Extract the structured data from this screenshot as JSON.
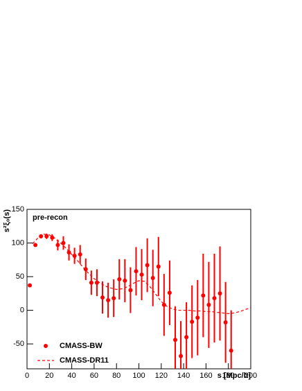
{
  "chart_data": {
    "type": "scatter",
    "annotation": "pre-recon",
    "x_label": "s [Mpc/h]",
    "y_label": "s²ξ₀(s)",
    "xlim": [
      0,
      200
    ],
    "xticks": [
      0,
      20,
      40,
      60,
      80,
      100,
      120,
      140,
      160,
      180,
      200
    ],
    "ylim": [
      -87,
      150
    ],
    "yticks": [
      -50,
      0,
      50,
      100,
      150
    ],
    "legend": "bottom-left",
    "series": [
      {
        "name": "CMASS-BW",
        "color": "#ff0000",
        "style": "points",
        "x": [
          2.5,
          7.5,
          12.5,
          17.5,
          22.5,
          27.5,
          32.5,
          37.5,
          42.5,
          47.5,
          52.5,
          57.5,
          62.5,
          67.5,
          72.5,
          77.5,
          82.5,
          87.5,
          92.5,
          97.5,
          102.5,
          107.5,
          112.5,
          117.5,
          122.5,
          127.5,
          132.5,
          137.5,
          142.5,
          147.5,
          152.5,
          157.5,
          162.5,
          167.5,
          172.5,
          177.5,
          182.5
        ],
        "values": [
          37,
          97,
          110,
          110,
          108,
          97,
          100,
          86,
          81,
          83,
          61,
          41,
          41,
          19,
          15,
          18,
          46,
          44,
          30,
          58,
          53,
          67,
          48,
          65,
          8,
          26,
          -44,
          -68,
          -40,
          -17,
          -11,
          22,
          8,
          18,
          25,
          -18,
          -60
        ],
        "errors": [
          2,
          2,
          3,
          4,
          5,
          8,
          10,
          12,
          12,
          14,
          16,
          18,
          20,
          24,
          26,
          28,
          30,
          32,
          34,
          36,
          38,
          40,
          42,
          44,
          46,
          48,
          50,
          52,
          52,
          54,
          56,
          62,
          64,
          66,
          70,
          60,
          60
        ]
      },
      {
        "name": "CMASS-DR11",
        "color": "#ff0000",
        "style": "dashed",
        "x": [
          5,
          10,
          15,
          20,
          25,
          30,
          35,
          40,
          45,
          50,
          55,
          60,
          65,
          70,
          75,
          80,
          85,
          90,
          95,
          100,
          105,
          110,
          115,
          120,
          125,
          130,
          135,
          140,
          145,
          150,
          155,
          160,
          165,
          170,
          175,
          180,
          185,
          190,
          195,
          200
        ],
        "values": [
          99,
          108,
          113,
          112,
          107,
          100,
          92,
          83,
          74,
          64,
          55,
          47,
          41,
          36,
          33,
          31,
          32,
          35,
          40,
          44,
          43,
          35,
          24,
          13,
          6,
          2,
          0,
          0,
          0,
          -1,
          -1,
          -2,
          -2,
          -3,
          -4,
          -5,
          -4,
          -2,
          1,
          4
        ]
      }
    ]
  }
}
